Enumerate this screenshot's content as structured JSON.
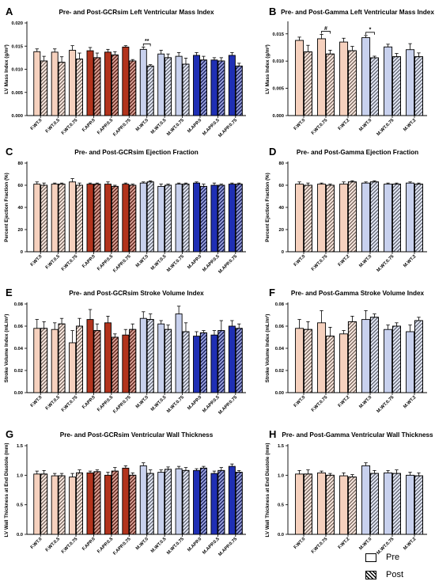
{
  "figure": {
    "legend": {
      "pre": "Pre",
      "post": "Post"
    }
  },
  "chart_data": [
    {
      "panel": "A",
      "type": "bar",
      "title": "Pre- and Post-GCRsim Left Ventricular Mass Index",
      "ylabel": "LV Mass Index (g/m²)",
      "ylim": [
        0,
        0.02
      ],
      "yticks": [
        0,
        0.005,
        0.01,
        0.015,
        0.02
      ],
      "ytick_labels": [
        "0.000",
        "0.005",
        "0.010",
        "0.015",
        "0.020"
      ],
      "categories": [
        "F.WT.0",
        "F.WT.0.5",
        "F.WT.0.75",
        "F.APP.0",
        "F.APP.0.5",
        "F.APP.0.75",
        "M.WT.0",
        "M.WT.0.5",
        "M.WT.0.75",
        "M.APP.0",
        "M.APP.0.5",
        "M.APP.0.75"
      ],
      "series": [
        {
          "name": "Pre",
          "values": [
            0.0138,
            0.0137,
            0.0141,
            0.014,
            0.0137,
            0.0148,
            0.0143,
            0.0133,
            0.0128,
            0.013,
            0.012,
            0.013
          ]
        },
        {
          "name": "Post",
          "values": [
            0.0118,
            0.0115,
            0.0122,
            0.0125,
            0.0131,
            0.0118,
            0.0107,
            0.0125,
            0.0111,
            0.012,
            0.0118,
            0.0107
          ]
        }
      ],
      "errors": [
        [
          0.0006,
          0.0007,
          0.001,
          0.0007,
          0.0006,
          0.0003,
          0.0005,
          0.0008,
          0.0008,
          0.0006,
          0.0005,
          0.0006
        ],
        [
          0.001,
          0.0012,
          0.0013,
          0.001,
          0.0007,
          0.0003,
          0.0003,
          0.0008,
          0.0013,
          0.0008,
          0.0007,
          0.0006
        ]
      ],
      "annotations": [
        {
          "text": "**",
          "category": "M.WT.0"
        }
      ]
    },
    {
      "panel": "B",
      "type": "bar",
      "title": "Pre- and Post-Gamma Left Ventricular Mass Index",
      "ylabel": "LV Mass Index (g/m²)",
      "ylim": [
        0,
        0.017
      ],
      "yticks": [
        0,
        0.005,
        0.01,
        0.015
      ],
      "ytick_labels": [
        "0.000",
        "0.005",
        "0.010",
        "0.015"
      ],
      "categories": [
        "F.WT.0",
        "F.WT.0.75",
        "F.WT.2",
        "M.WT.0",
        "M.WT.0.75",
        "M.WT.2"
      ],
      "series": [
        {
          "name": "Pre",
          "values": [
            0.0138,
            0.0141,
            0.0135,
            0.0143,
            0.0126,
            0.0121
          ]
        },
        {
          "name": "Post",
          "values": [
            0.0117,
            0.0113,
            0.0119,
            0.0106,
            0.0108,
            0.0108
          ]
        }
      ],
      "errors": [
        [
          0.0006,
          0.0008,
          0.0007,
          0.0004,
          0.0005,
          0.0011
        ],
        [
          0.0012,
          0.0007,
          0.0008,
          0.0003,
          0.0006,
          0.0007
        ]
      ],
      "annotations": [
        {
          "text": "#",
          "category": "F.WT.0.75"
        },
        {
          "text": "*",
          "category": "M.WT.0"
        }
      ]
    },
    {
      "panel": "C",
      "type": "bar",
      "title": "Pre- and Post-GCRsim Ejection Fraction",
      "ylabel": "Percent Ejection Fraction (%)",
      "ylim": [
        0,
        80
      ],
      "yticks": [
        0,
        20,
        40,
        60,
        80
      ],
      "ytick_labels": [
        "0",
        "20",
        "40",
        "60",
        "80"
      ],
      "categories": [
        "F.WT.0",
        "F.WT.0.5",
        "F.WT.0.75",
        "F.APP.0",
        "F.APP.0.5",
        "F.APP.0.75",
        "M.WT.0",
        "M.WT.0.5",
        "M.WT.0.75",
        "M.APP.0",
        "M.APP.0.5",
        "M.APP.0.75"
      ],
      "series": [
        {
          "name": "Pre",
          "values": [
            61,
            61,
            63,
            61,
            61,
            61,
            62,
            59,
            61,
            62,
            60,
            61
          ]
        },
        {
          "name": "Post",
          "values": [
            60,
            61,
            60,
            61,
            59,
            60,
            63,
            60,
            61,
            59,
            60,
            61
          ]
        }
      ],
      "errors": [
        [
          2,
          1,
          3,
          1,
          2,
          1,
          1,
          2,
          1,
          1,
          2,
          1
        ],
        [
          2,
          1,
          2,
          1,
          1,
          1,
          1,
          1,
          1,
          2,
          1,
          1
        ]
      ]
    },
    {
      "panel": "D",
      "type": "bar",
      "title": "Pre- and Post-Gamma Ejection Fraction",
      "ylabel": "Percent Ejection Fraction (%)",
      "ylim": [
        0,
        80
      ],
      "yticks": [
        0,
        20,
        40,
        60,
        80
      ],
      "ytick_labels": [
        "0",
        "20",
        "40",
        "60",
        "80"
      ],
      "categories": [
        "F.WT.0",
        "F.WT.0.75",
        "F.WT.2",
        "M.WT.0",
        "M.WT.0.75",
        "M.WT.2"
      ],
      "series": [
        {
          "name": "Pre",
          "values": [
            61,
            61,
            61,
            62,
            61,
            62
          ]
        },
        {
          "name": "Post",
          "values": [
            60,
            60,
            63,
            63,
            61,
            61
          ]
        }
      ],
      "errors": [
        [
          2,
          1,
          2,
          1,
          1,
          1
        ],
        [
          2,
          1,
          1,
          1,
          1,
          1
        ]
      ]
    },
    {
      "panel": "E",
      "type": "bar",
      "title": "Pre- and Post-GCRsim Stroke Volume Index",
      "ylabel": "Stroke Volume Index (mL/m²)",
      "ylim": [
        0,
        0.08
      ],
      "yticks": [
        0,
        0.02,
        0.04,
        0.06,
        0.08
      ],
      "ytick_labels": [
        "0.00",
        "0.02",
        "0.04",
        "0.06",
        "0.08"
      ],
      "categories": [
        "F.WT.0",
        "F.WT.0.5",
        "F.WT.0.75",
        "F.APP.0",
        "F.APP.0.5",
        "F.APP.0.75",
        "M.WT.0",
        "M.WT.0.5",
        "M.WT.0.75",
        "M.APP.0",
        "M.APP.0.5",
        "M.APP.0.75"
      ],
      "series": [
        {
          "name": "Pre",
          "values": [
            0.058,
            0.057,
            0.045,
            0.066,
            0.063,
            0.052,
            0.067,
            0.062,
            0.071,
            0.051,
            0.052,
            0.06
          ]
        },
        {
          "name": "Post",
          "values": [
            0.058,
            0.062,
            0.06,
            0.056,
            0.05,
            0.057,
            0.066,
            0.057,
            0.055,
            0.054,
            0.056,
            0.058
          ]
        }
      ],
      "errors": [
        [
          0.008,
          0.006,
          0.011,
          0.009,
          0.006,
          0.005,
          0.006,
          0.003,
          0.007,
          0.004,
          0.004,
          0.005
        ],
        [
          0.006,
          0.005,
          0.007,
          0.006,
          0.003,
          0.005,
          0.005,
          0.004,
          0.008,
          0.002,
          0.009,
          0.004
        ]
      ]
    },
    {
      "panel": "F",
      "type": "bar",
      "title": "Pre- and Post-Gamma Stroke Volume Index",
      "ylabel": "Stroke Volume Index (mL/m²)",
      "ylim": [
        0,
        0.08
      ],
      "yticks": [
        0,
        0.02,
        0.04,
        0.06,
        0.08
      ],
      "ytick_labels": [
        "0.00",
        "0.02",
        "0.04",
        "0.06",
        "0.08"
      ],
      "categories": [
        "F.WT.0",
        "F.WT.0.75",
        "F.WT.2",
        "M.WT.0",
        "M.WT.0.75",
        "M.WT.2"
      ],
      "series": [
        {
          "name": "Pre",
          "values": [
            0.058,
            0.063,
            0.053,
            0.066,
            0.057,
            0.055
          ]
        },
        {
          "name": "Post",
          "values": [
            0.057,
            0.051,
            0.064,
            0.068,
            0.06,
            0.065
          ]
        }
      ],
      "errors": [
        [
          0.008,
          0.011,
          0.003,
          0.008,
          0.004,
          0.006
        ],
        [
          0.007,
          0.008,
          0.005,
          0.003,
          0.003,
          0.003
        ]
      ]
    },
    {
      "panel": "G",
      "type": "bar",
      "title": "Pre- and Post-GCRsim Ventricular Wall Thickness",
      "ylabel": "LV Wall Thickness at End Diastole (mm)",
      "ylim": [
        0,
        1.5
      ],
      "yticks": [
        0,
        0.5,
        1.0,
        1.5
      ],
      "ytick_labels": [
        "0.0",
        "0.5",
        "1.0",
        "1.5"
      ],
      "categories": [
        "F.WT.0",
        "F.WT.0.5",
        "F.WT.0.75",
        "F.APP.0",
        "F.APP.0.5",
        "F.APP.0.75",
        "M.WT.0",
        "M.WT.0.5",
        "M.WT.0.75",
        "M.APP.0",
        "M.APP.0.5",
        "M.APP.0.75"
      ],
      "series": [
        {
          "name": "Pre",
          "values": [
            1.02,
            0.99,
            0.97,
            1.04,
            1.0,
            1.12,
            1.16,
            1.05,
            1.11,
            1.08,
            1.03,
            1.15
          ]
        },
        {
          "name": "Post",
          "values": [
            1.02,
            0.99,
            1.04,
            1.06,
            1.07,
            1.0,
            1.03,
            1.1,
            1.08,
            1.12,
            1.08,
            1.05
          ]
        }
      ],
      "errors": [
        [
          0.05,
          0.04,
          0.06,
          0.03,
          0.05,
          0.04,
          0.05,
          0.04,
          0.04,
          0.03,
          0.04,
          0.04
        ],
        [
          0.06,
          0.04,
          0.05,
          0.03,
          0.06,
          0.04,
          0.06,
          0.04,
          0.05,
          0.03,
          0.05,
          0.03
        ]
      ]
    },
    {
      "panel": "H",
      "type": "bar",
      "title": "Pre- and Post-Gamma Ventricular Wall Thickness",
      "ylabel": "LV Wall Thickness at End Diastole (mm)",
      "ylim": [
        0,
        1.5
      ],
      "yticks": [
        0,
        0.5,
        1.0,
        1.5
      ],
      "ytick_labels": [
        "0.0",
        "0.5",
        "1.0",
        "1.5"
      ],
      "categories": [
        "F.WT.0",
        "F.WT.0.75",
        "F.WT.2",
        "M.WT.0",
        "M.WT.0.75",
        "M.WT.2"
      ],
      "series": [
        {
          "name": "Pre",
          "values": [
            1.02,
            1.04,
            0.99,
            1.16,
            1.04,
            1.0
          ]
        },
        {
          "name": "Post",
          "values": [
            1.02,
            1.0,
            0.97,
            1.03,
            1.03,
            0.99
          ]
        }
      ],
      "errors": [
        [
          0.06,
          0.03,
          0.05,
          0.05,
          0.04,
          0.05
        ],
        [
          0.07,
          0.03,
          0.04,
          0.05,
          0.06,
          0.05
        ]
      ]
    }
  ]
}
